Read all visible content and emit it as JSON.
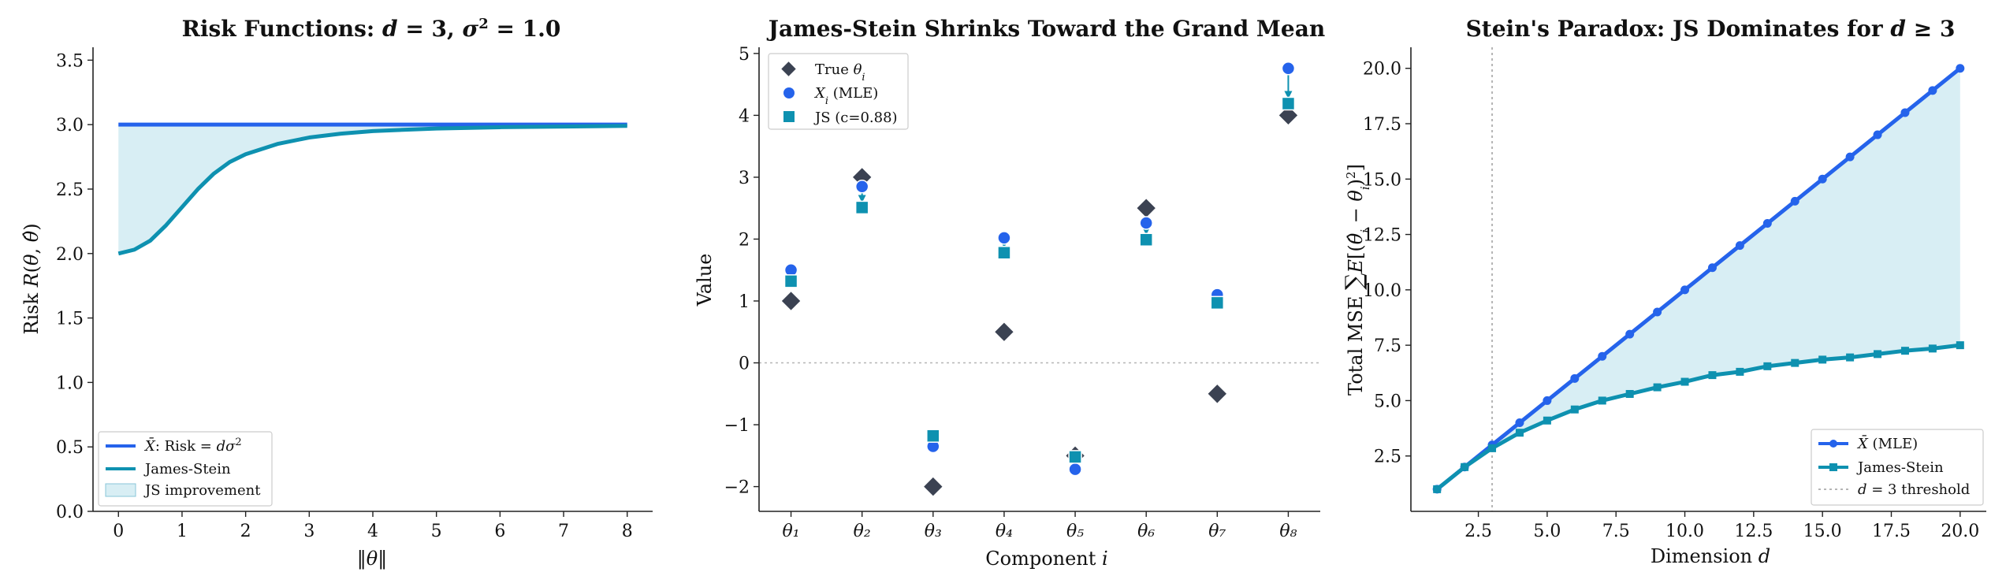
{
  "colors": {
    "mle": "#2563eb",
    "js": "#0e91b0",
    "fill": "#a9d9e6",
    "true": "#3b4252",
    "grid": "#b5b5b5"
  },
  "chart_data": [
    {
      "type": "line",
      "title": "Risk Functions: d = 3, σ² = 1.0",
      "xlabel": "‖θ‖",
      "ylabel": "Risk R(θ, θ̂)",
      "xlim": [
        -0.4,
        8.4
      ],
      "ylim": [
        0.0,
        3.6
      ],
      "xticks": [
        0,
        1,
        2,
        3,
        4,
        5,
        6,
        7,
        8
      ],
      "yticks": [
        0.0,
        0.5,
        1.0,
        1.5,
        2.0,
        2.5,
        3.0,
        3.5
      ],
      "series": [
        {
          "name": "X̄: Risk = dσ²",
          "x": [
            0,
            8
          ],
          "y": [
            3.0,
            3.0
          ]
        },
        {
          "name": "James-Stein",
          "x": [
            0,
            0.25,
            0.5,
            0.75,
            1.0,
            1.25,
            1.5,
            1.75,
            2.0,
            2.5,
            3.0,
            3.5,
            4.0,
            5.0,
            6.0,
            7.0,
            8.0
          ],
          "y": [
            2.0,
            2.03,
            2.1,
            2.22,
            2.36,
            2.5,
            2.62,
            2.71,
            2.77,
            2.85,
            2.9,
            2.93,
            2.95,
            2.97,
            2.98,
            2.985,
            2.99
          ]
        }
      ],
      "fill_label": "JS improvement",
      "legend": "lower-left"
    },
    {
      "type": "scatter",
      "title": "James-Stein Shrinks Toward the Grand Mean",
      "xlabel": "Component i",
      "ylabel": "Value",
      "categories": [
        "θ₁",
        "θ₂",
        "θ₃",
        "θ₄",
        "θ₅",
        "θ₆",
        "θ₇",
        "θ₈"
      ],
      "ylim": [
        -2.4,
        5.1
      ],
      "yticks": [
        -2,
        -1,
        0,
        1,
        2,
        3,
        4,
        5
      ],
      "series": [
        {
          "name": "True θᵢ",
          "values": [
            1.0,
            3.0,
            -2.0,
            0.5,
            -1.5,
            2.5,
            -0.5,
            4.0
          ]
        },
        {
          "name": "Xᵢ (MLE)",
          "values": [
            1.5,
            2.85,
            -1.35,
            2.02,
            -1.72,
            2.26,
            1.1,
            4.76
          ]
        },
        {
          "name": "JS (c=0.88)",
          "values": [
            1.32,
            2.51,
            -1.18,
            1.78,
            -1.52,
            1.99,
            0.97,
            4.19
          ]
        }
      ],
      "legend": "upper-left"
    },
    {
      "type": "line",
      "title": "Stein's Paradox: JS Dominates for d ≥ 3",
      "xlabel": "Dimension d",
      "ylabel": "Total MSE ∑E[(θ̂ᵢ − θᵢ)²]",
      "xlim": [
        0.05,
        20.95
      ],
      "ylim": [
        0.0,
        20.95
      ],
      "xticks": [
        2.5,
        5.0,
        7.5,
        10.0,
        12.5,
        15.0,
        17.5,
        20.0
      ],
      "yticks": [
        2.5,
        5.0,
        7.5,
        10.0,
        12.5,
        15.0,
        17.5,
        20.0
      ],
      "x": [
        1,
        2,
        3,
        4,
        5,
        6,
        7,
        8,
        9,
        10,
        11,
        12,
        13,
        14,
        15,
        16,
        17,
        18,
        19,
        20
      ],
      "series": [
        {
          "name": "X̄ (MLE)",
          "values": [
            1,
            2,
            3,
            4,
            5,
            6,
            7,
            8,
            9,
            10,
            11,
            12,
            13,
            14,
            15,
            16,
            17,
            18,
            19,
            20
          ]
        },
        {
          "name": "James-Stein",
          "values": [
            1.0,
            2.0,
            2.85,
            3.55,
            4.1,
            4.6,
            5.0,
            5.3,
            5.6,
            5.85,
            6.15,
            6.3,
            6.55,
            6.7,
            6.85,
            6.95,
            7.1,
            7.25,
            7.35,
            7.5
          ]
        }
      ],
      "threshold": {
        "x": 3,
        "name": "d = 3 threshold"
      },
      "legend": "lower-right"
    }
  ]
}
